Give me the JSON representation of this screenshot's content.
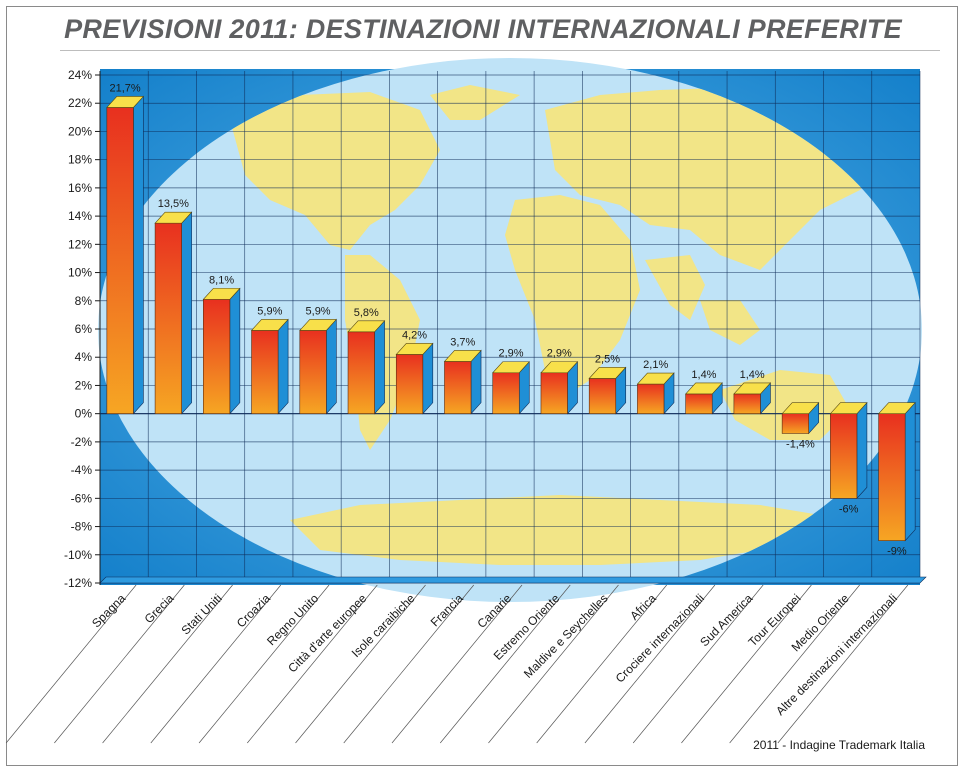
{
  "chart_data": {
    "type": "bar",
    "title": "PREVISIONI 2011: DESTINAZIONI INTERNAZIONALI PREFERITE",
    "source": "2011 - Indagine Trademark Italia",
    "categories": [
      "Spagna",
      "Grecia",
      "Stati Uniti",
      "Croazia",
      "Regno Unito",
      "Città d'arte europee",
      "Isole caraibiche",
      "Francia",
      "Canarie",
      "Estremo Oriente",
      "Maldive e Seychelles",
      "Africa",
      "Crociere internazionali",
      "Sud America",
      "Tour Europei",
      "Medio Oriente",
      "Altre destinazioni internazionali"
    ],
    "values": [
      21.7,
      13.5,
      8.1,
      5.9,
      5.9,
      5.8,
      4.2,
      3.7,
      2.9,
      2.9,
      2.5,
      2.1,
      1.4,
      1.4,
      -1.4,
      -6,
      -9
    ],
    "value_labels": [
      "21,7%",
      "13,5%",
      "8,1%",
      "5,9%",
      "5,9%",
      "5,8%",
      "4,2%",
      "3,7%",
      "2,9%",
      "2,9%",
      "2,5%",
      "2,1%",
      "1,4%",
      "1,4%",
      "-1,4%",
      "-6%",
      "-9%"
    ],
    "y_ticks": [
      24,
      22,
      20,
      18,
      16,
      14,
      12,
      10,
      8,
      6,
      4,
      2,
      0,
      -2,
      -4,
      -6,
      -8,
      -10,
      -12
    ],
    "y_tick_labels": [
      "24%",
      "22%",
      "20%",
      "18%",
      "16%",
      "14%",
      "12%",
      "10%",
      "8%",
      "6%",
      "4%",
      "2%",
      "0%",
      "-2%",
      "-4%",
      "-6%",
      "-8%",
      "-10%",
      "-12%"
    ],
    "ylim": [
      -12,
      24
    ],
    "grid": true,
    "background": "world map",
    "colors": {
      "bar_top": "#e8301f",
      "bar_bottom": "#f6a623",
      "bar_side": "#1f8fd6",
      "bar_cap": "#f8e04a",
      "sea": "#bfe3f7",
      "ocean_edge": "#1a8fd8",
      "land": "#f7e47a",
      "grid": "#0d2a57"
    }
  }
}
